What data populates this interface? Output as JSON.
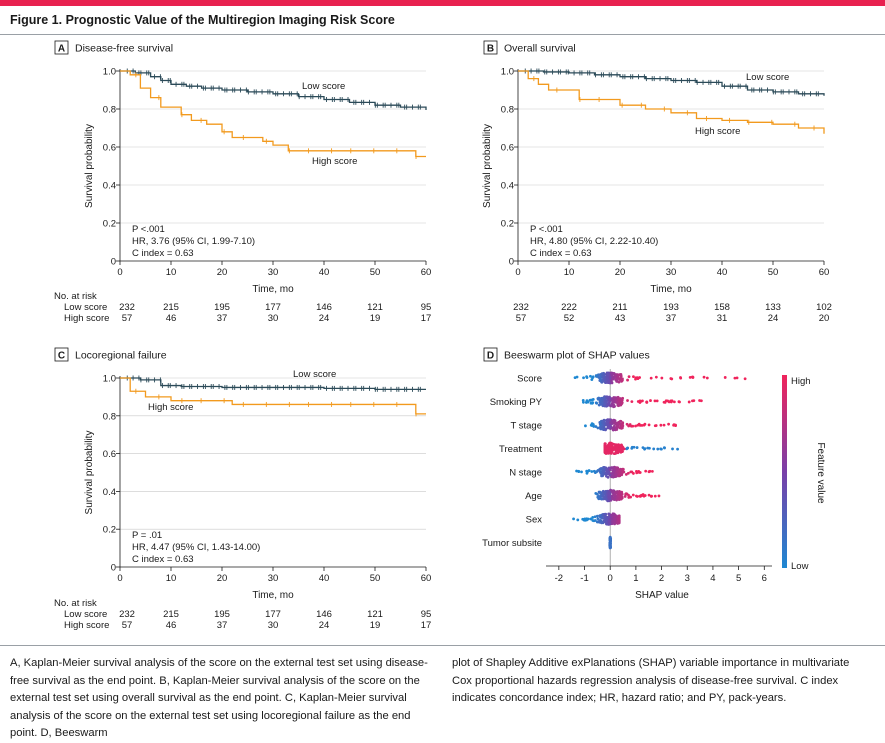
{
  "figure": {
    "title": "Figure 1. Prognostic Value of the Multiregion Imaging Risk Score",
    "caption_left": "A, Kaplan-Meier survival analysis of the score on the external test set using disease-free survival as the end point. B, Kaplan-Meier survival analysis of the score on the external test set using overall survival as the end point. C, Kaplan-Meier survival analysis of the score on the external test set using locoregional failure as the end point. D, Beeswarm",
    "caption_right": "plot of Shapley Additive exPlanations (SHAP) variable importance in multivariate Cox proportional hazards regression analysis of disease-free survival. C index indicates concordance index; HR, hazard ratio; and PY, pack-years."
  },
  "colors": {
    "low": "#2b4a58",
    "high": "#f29a1e",
    "feature_high": "#f0245c",
    "feature_low": "#1e88d2",
    "mid": "#7a3fa8"
  },
  "chart_data": [
    {
      "panel": "A",
      "type": "line",
      "title": "Disease-free survival",
      "xlabel": "Time, mo",
      "ylabel": "Survival probability",
      "xlim": [
        0,
        60
      ],
      "ylim": [
        0,
        1.0
      ],
      "xticks": [
        "0",
        "10",
        "20",
        "30",
        "40",
        "50",
        "60"
      ],
      "yticks": [
        "0",
        "0.2",
        "0.4",
        "0.6",
        "0.8",
        "1.0"
      ],
      "annotation_p": "P <.001",
      "annotation_hr": "HR, 3.76 (95% CI, 1.99-7.10)",
      "annotation_c": "C index = 0.63",
      "series": [
        {
          "name": "Low score",
          "x": [
            0,
            3,
            6,
            8,
            10,
            13,
            16,
            20,
            25,
            30,
            35,
            40,
            45,
            50,
            55,
            60
          ],
          "y": [
            1.0,
            0.99,
            0.97,
            0.95,
            0.93,
            0.92,
            0.91,
            0.9,
            0.89,
            0.88,
            0.865,
            0.85,
            0.835,
            0.82,
            0.81,
            0.795
          ]
        },
        {
          "name": "High score",
          "x": [
            0,
            2,
            4,
            6,
            8,
            12,
            14,
            17,
            20,
            22,
            28,
            30,
            33,
            40,
            50,
            58,
            60
          ],
          "y": [
            1.0,
            0.98,
            0.91,
            0.86,
            0.81,
            0.77,
            0.74,
            0.72,
            0.68,
            0.65,
            0.63,
            0.61,
            0.58,
            0.58,
            0.58,
            0.55,
            0.55
          ]
        }
      ],
      "line_labels": [
        "Low score",
        "High score"
      ],
      "risk_header": "No. at risk",
      "risk_rows": [
        {
          "label": "Low score",
          "values": [
            "232",
            "215",
            "195",
            "177",
            "146",
            "121",
            "95"
          ]
        },
        {
          "label": "High score",
          "values": [
            "57",
            "46",
            "37",
            "30",
            "24",
            "19",
            "17"
          ]
        }
      ]
    },
    {
      "panel": "B",
      "type": "line",
      "title": "Overall survival",
      "xlabel": "Time, mo",
      "ylabel": "Survival probability",
      "xlim": [
        0,
        60
      ],
      "ylim": [
        0,
        1.0
      ],
      "xticks": [
        "0",
        "10",
        "20",
        "30",
        "40",
        "50",
        "60"
      ],
      "yticks": [
        "0",
        "0.2",
        "0.4",
        "0.6",
        "0.8",
        "1.0"
      ],
      "annotation_p": "P <.001",
      "annotation_hr": "HR, 4.80 (95% CI, 2.22-10.40)",
      "annotation_c": "C index = 0.63",
      "series": [
        {
          "name": "Low score",
          "x": [
            0,
            5,
            10,
            15,
            20,
            25,
            30,
            35,
            40,
            45,
            50,
            55,
            60
          ],
          "y": [
            1.0,
            0.995,
            0.99,
            0.98,
            0.97,
            0.96,
            0.95,
            0.94,
            0.92,
            0.9,
            0.89,
            0.88,
            0.87
          ]
        },
        {
          "name": "High score",
          "x": [
            0,
            2,
            4,
            6,
            10,
            12,
            20,
            25,
            30,
            35,
            40,
            45,
            50,
            55,
            60
          ],
          "y": [
            1.0,
            0.96,
            0.93,
            0.9,
            0.9,
            0.85,
            0.82,
            0.8,
            0.78,
            0.75,
            0.74,
            0.73,
            0.72,
            0.7,
            0.67
          ]
        }
      ],
      "line_labels": [
        "Low score",
        "High score"
      ],
      "risk_header": "",
      "risk_rows": [
        {
          "label": "",
          "values": [
            "232",
            "222",
            "211",
            "193",
            "158",
            "133",
            "102"
          ]
        },
        {
          "label": "",
          "values": [
            "57",
            "52",
            "43",
            "37",
            "31",
            "24",
            "20"
          ]
        }
      ]
    },
    {
      "panel": "C",
      "type": "line",
      "title": "Locoregional failure",
      "xlabel": "Time, mo",
      "ylabel": "Survival probability",
      "xlim": [
        0,
        60
      ],
      "ylim": [
        0,
        1.0
      ],
      "xticks": [
        "0",
        "10",
        "20",
        "30",
        "40",
        "50",
        "60"
      ],
      "yticks": [
        "0",
        "0.2",
        "0.4",
        "0.6",
        "0.8",
        "1.0"
      ],
      "annotation_p": "P = .01",
      "annotation_hr": "HR, 4.47 (95% CI, 1.43-14.00)",
      "annotation_c": "C index = 0.63",
      "series": [
        {
          "name": "Low score",
          "x": [
            0,
            4,
            8,
            12,
            20,
            30,
            40,
            50,
            60
          ],
          "y": [
            1.0,
            0.99,
            0.96,
            0.955,
            0.95,
            0.95,
            0.945,
            0.94,
            0.94
          ]
        },
        {
          "name": "High score",
          "x": [
            0,
            2,
            5,
            10,
            16,
            22,
            30,
            40,
            50,
            58,
            60
          ],
          "y": [
            1.0,
            0.93,
            0.9,
            0.88,
            0.88,
            0.86,
            0.86,
            0.86,
            0.86,
            0.81,
            0.81
          ]
        }
      ],
      "line_labels": [
        "Low score",
        "High score"
      ],
      "risk_header": "No. at risk",
      "risk_rows": [
        {
          "label": "Low score",
          "values": [
            "232",
            "215",
            "195",
            "177",
            "146",
            "121",
            "95"
          ]
        },
        {
          "label": "High score",
          "values": [
            "57",
            "46",
            "37",
            "30",
            "24",
            "19",
            "17"
          ]
        }
      ]
    },
    {
      "panel": "D",
      "type": "scatter",
      "title": "Beeswarm plot of SHAP values",
      "xlabel": "SHAP value",
      "xlim": [
        -2.5,
        6.3
      ],
      "xticks": [
        -2,
        -1,
        0,
        1,
        2,
        3,
        4,
        5,
        6
      ],
      "tick_labels": [
        "-2",
        "-1",
        "0",
        "1",
        "2",
        "3",
        "4",
        "5",
        "6"
      ],
      "features": [
        "Score",
        "Smoking PY",
        "T stage",
        "Treatment",
        "N stage",
        "Age",
        "Sex",
        "Tumor subsite"
      ],
      "feature_ranges": [
        [
          -1.4,
          5.6
        ],
        [
          -1.2,
          3.6
        ],
        [
          -1.1,
          2.6
        ],
        [
          -0.2,
          2.8
        ],
        [
          -1.6,
          1.7
        ],
        [
          -0.6,
          1.9
        ],
        [
          -1.5,
          0.35
        ],
        [
          -0.02,
          0.02
        ]
      ],
      "colorbar_label": "Feature value",
      "colorbar_high": "High",
      "colorbar_low": "Low"
    }
  ]
}
